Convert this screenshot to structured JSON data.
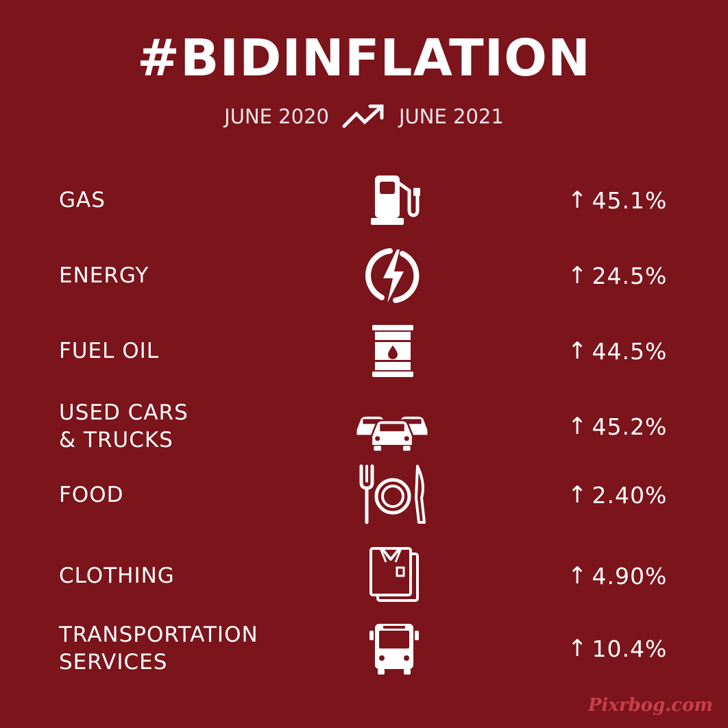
{
  "header": {
    "title": "#BIDINFLATION",
    "from": "JUNE 2020",
    "to": "JUNE 2021",
    "trend_icon": "trending-up-icon"
  },
  "rows": [
    {
      "label": "GAS",
      "label2": "",
      "icon": "gas-pump-icon",
      "arrow": "↑",
      "value": "45.1%"
    },
    {
      "label": "ENERGY",
      "label2": "",
      "icon": "lightning-bolt-icon",
      "arrow": "↑",
      "value": "24.5%"
    },
    {
      "label": "FUEL OIL",
      "label2": "",
      "icon": "oil-barrel-icon",
      "arrow": "↑",
      "value": "44.5%"
    },
    {
      "label": "USED CARS",
      "label2": "& TRUCKS",
      "icon": "cars-icon",
      "arrow": "↑",
      "value": "45.2%"
    },
    {
      "label": "FOOD",
      "label2": "",
      "icon": "plate-fork-knife-icon",
      "arrow": "↑",
      "value": "2.40%"
    },
    {
      "label": "CLOTHING",
      "label2": "",
      "icon": "folded-shirt-icon",
      "arrow": "↑",
      "value": "4.90%"
    },
    {
      "label": "TRANSPORTATION",
      "label2": "SERVICES",
      "icon": "bus-icon",
      "arrow": "↑",
      "value": "10.4%"
    }
  ],
  "colors": {
    "background": "#7b141b",
    "text": "#ffffff",
    "watermark": "#d64a52"
  },
  "watermark": "Pixrbog.com"
}
